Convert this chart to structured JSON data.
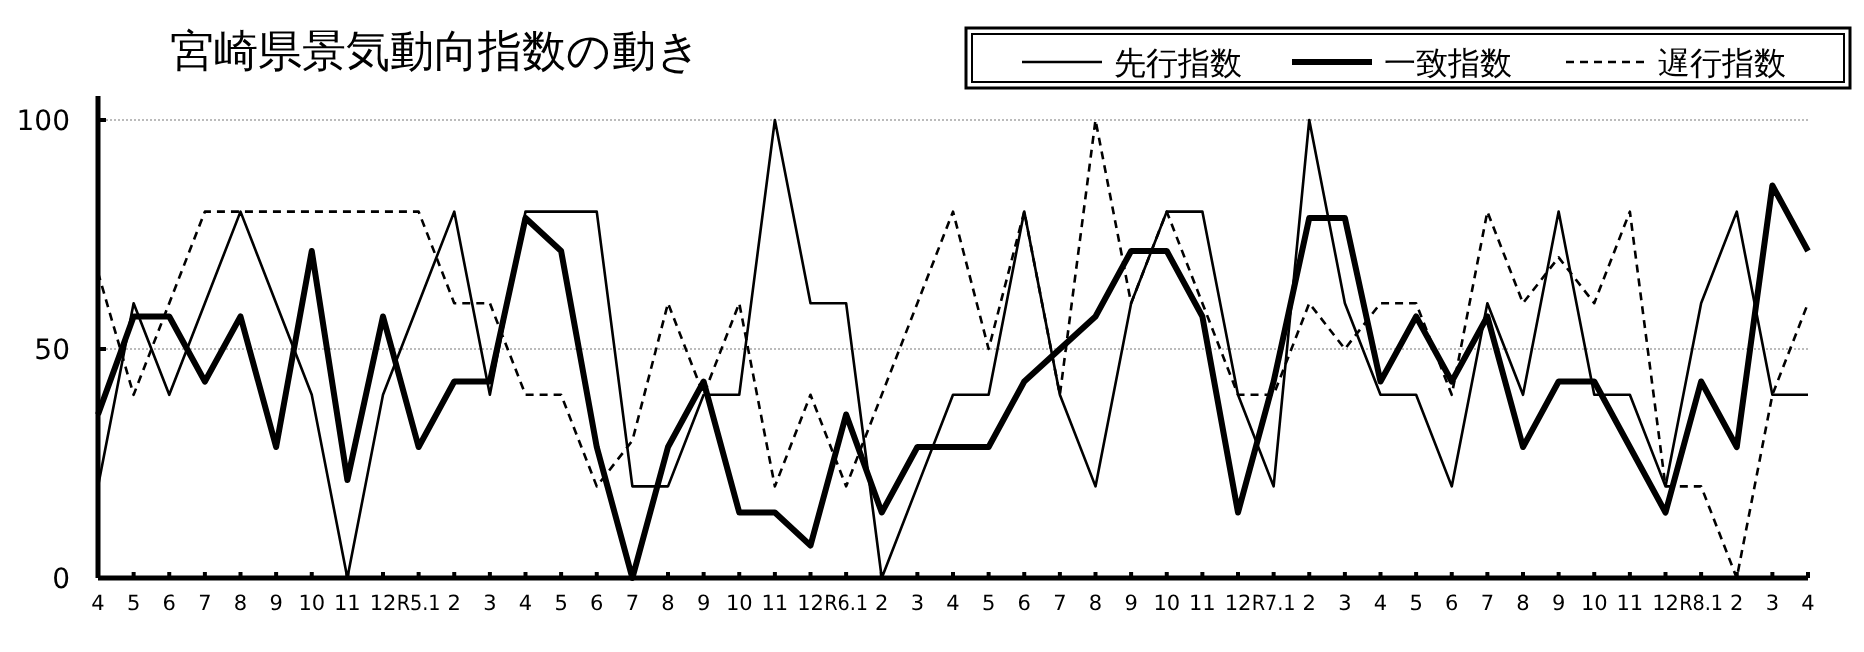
{
  "chart_data": {
    "type": "line",
    "title": "宮崎県景気動向指数の動き",
    "categories": [
      "4",
      "5",
      "6",
      "7",
      "8",
      "9",
      "10",
      "11",
      "12",
      "R5.1",
      "2",
      "3",
      "4",
      "5",
      "6",
      "7",
      "8",
      "9",
      "10",
      "11",
      "12",
      "R6.1",
      "2",
      "3",
      "4",
      "5",
      "6",
      "7",
      "8",
      "9",
      "10",
      "11",
      "12",
      "R7.1",
      "2",
      "3",
      "4",
      "5",
      "6",
      "7",
      "8",
      "9",
      "10",
      "11",
      "12",
      "R8.1",
      "2",
      "3",
      "4"
    ],
    "ylim": [
      0,
      100
    ],
    "yticks": [
      0,
      50,
      100
    ],
    "grid": "y",
    "legend": "top right",
    "marker": "none",
    "series": [
      {
        "name": "先行指数",
        "color": "#000000",
        "line_style": "solid",
        "values": [
          20,
          60,
          40,
          60,
          80,
          60,
          40,
          0,
          40,
          60,
          80,
          40,
          80,
          80,
          80,
          20,
          20,
          40,
          40,
          100,
          60,
          60,
          0,
          20,
          40,
          40,
          80,
          40,
          20,
          60,
          80,
          80,
          40,
          20,
          100,
          60,
          40,
          40,
          20,
          60,
          40,
          80,
          40,
          40,
          20,
          60,
          80,
          40,
          40
        ]
      },
      {
        "name": "一致指数",
        "color": "#000000",
        "line_style": "solid",
        "values": [
          35.7,
          57.1,
          57.1,
          42.9,
          57.1,
          28.6,
          71.4,
          21.4,
          57.1,
          28.6,
          42.9,
          42.9,
          78.6,
          71.4,
          28.6,
          0,
          28.6,
          42.9,
          14.3,
          14.3,
          7.1,
          35.7,
          14.3,
          28.6,
          28.6,
          28.6,
          42.9,
          50,
          57.1,
          71.4,
          71.4,
          57.1,
          14.3,
          42.9,
          78.6,
          78.6,
          42.9,
          57.1,
          42.9,
          57.1,
          28.6,
          42.9,
          42.9,
          28.6,
          14.3,
          42.9,
          28.6,
          85.7,
          71.4
        ]
      },
      {
        "name": "遅行指数",
        "color": "#000000",
        "line_style": "dashed",
        "values": [
          66.7,
          40,
          60,
          80,
          80,
          80,
          80,
          80,
          80,
          80,
          60,
          60,
          40,
          40,
          20,
          30,
          60,
          40,
          60,
          20,
          40,
          20,
          40,
          60,
          80,
          50,
          80,
          40,
          100,
          60,
          80,
          60,
          40,
          40,
          60,
          50,
          60,
          60,
          40,
          80,
          60,
          70,
          60,
          80,
          20,
          20,
          0,
          40,
          60
        ]
      }
    ]
  }
}
